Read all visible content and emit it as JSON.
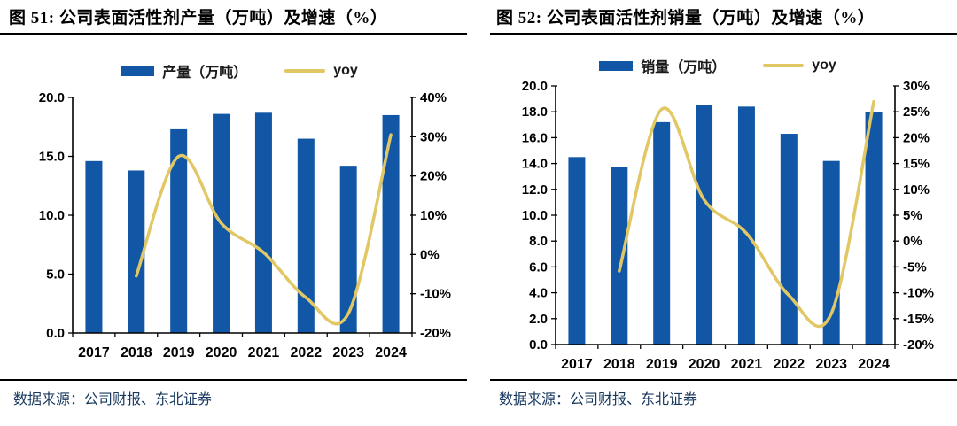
{
  "chart_data": [
    {
      "type": "combo_bar_line",
      "title": "图 51: 公司表面活性剂产量（万吨）及增速（%）",
      "source": "数据来源：公司财报、东北证券",
      "categories": [
        "2017",
        "2018",
        "2019",
        "2020",
        "2021",
        "2022",
        "2023",
        "2024"
      ],
      "series": [
        {
          "name": "产量（万吨）",
          "type": "bar",
          "axis": "left",
          "color": "#1157A6",
          "values": [
            14.6,
            13.8,
            17.3,
            18.6,
            18.7,
            16.5,
            14.2,
            18.5
          ]
        },
        {
          "name": "yoy",
          "type": "line",
          "axis": "right",
          "color": "#E2C765",
          "values": [
            null,
            -5.5,
            25.0,
            8.0,
            0.5,
            -11.0,
            -15.0,
            30.5
          ]
        }
      ],
      "left_axis": {
        "min": 0,
        "max": 20,
        "step": 5,
        "decimals": 1
      },
      "right_axis": {
        "min": -20,
        "max": 40,
        "step": 10,
        "suffix": "%"
      },
      "grid": false,
      "legend_position": "top"
    },
    {
      "type": "combo_bar_line",
      "title": "图 52: 公司表面活性剂销量（万吨）及增速（%）",
      "source": "数据来源：公司财报、东北证券",
      "categories": [
        "2017",
        "2018",
        "2019",
        "2020",
        "2021",
        "2022",
        "2023",
        "2024"
      ],
      "series": [
        {
          "name": "销量（万吨）",
          "type": "bar",
          "axis": "left",
          "color": "#1157A6",
          "values": [
            14.5,
            13.7,
            17.2,
            18.5,
            18.4,
            16.3,
            14.2,
            18.0
          ]
        },
        {
          "name": "yoy",
          "type": "line",
          "axis": "right",
          "color": "#E2C765",
          "values": [
            null,
            -5.8,
            25.5,
            8.0,
            1.5,
            -10.5,
            -14.0,
            27.0
          ]
        }
      ],
      "left_axis": {
        "min": 0,
        "max": 20,
        "step": 2,
        "decimals": 1
      },
      "right_axis": {
        "min": -20,
        "max": 30,
        "step": 5,
        "suffix": "%"
      },
      "grid": false,
      "legend_position": "top"
    }
  ]
}
